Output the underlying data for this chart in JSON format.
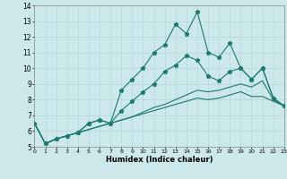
{
  "xlabel": "Humidex (Indice chaleur)",
  "bg_color": "#cce8ea",
  "line_color": "#1a7a6e",
  "grid_color": "#b8d8dc",
  "x": [
    0,
    1,
    2,
    3,
    4,
    5,
    6,
    7,
    8,
    9,
    10,
    11,
    12,
    13,
    14,
    15,
    16,
    17,
    18,
    19,
    20,
    21,
    22,
    23
  ],
  "line1": [
    6.5,
    5.2,
    5.5,
    5.7,
    5.9,
    6.5,
    6.7,
    6.5,
    8.6,
    9.3,
    10.0,
    11.0,
    11.5,
    12.8,
    12.2,
    13.6,
    11.0,
    10.7,
    11.6,
    10.0,
    9.3,
    10.0,
    8.1,
    7.6
  ],
  "line2": [
    6.5,
    5.2,
    5.5,
    5.7,
    5.9,
    6.5,
    6.7,
    6.5,
    7.3,
    7.9,
    8.5,
    9.0,
    9.8,
    10.2,
    10.8,
    10.5,
    9.5,
    9.2,
    9.8,
    10.0,
    9.3,
    10.0,
    8.1,
    7.6
  ],
  "line3": [
    6.5,
    5.2,
    5.5,
    5.7,
    5.9,
    6.1,
    6.3,
    6.5,
    6.7,
    6.9,
    7.2,
    7.5,
    7.7,
    8.0,
    8.3,
    8.6,
    8.5,
    8.6,
    8.8,
    9.0,
    8.8,
    9.2,
    8.0,
    7.6
  ],
  "line4": [
    6.5,
    5.2,
    5.5,
    5.7,
    5.9,
    6.1,
    6.3,
    6.5,
    6.7,
    6.9,
    7.1,
    7.3,
    7.5,
    7.7,
    7.9,
    8.1,
    8.0,
    8.1,
    8.3,
    8.5,
    8.2,
    8.2,
    7.9,
    7.6
  ],
  "ylim": [
    5,
    14
  ],
  "xlim": [
    0,
    23
  ],
  "yticks": [
    5,
    6,
    7,
    8,
    9,
    10,
    11,
    12,
    13,
    14
  ],
  "xticks": [
    0,
    1,
    2,
    3,
    4,
    5,
    6,
    7,
    8,
    9,
    10,
    11,
    12,
    13,
    14,
    15,
    16,
    17,
    18,
    19,
    20,
    21,
    22,
    23
  ]
}
